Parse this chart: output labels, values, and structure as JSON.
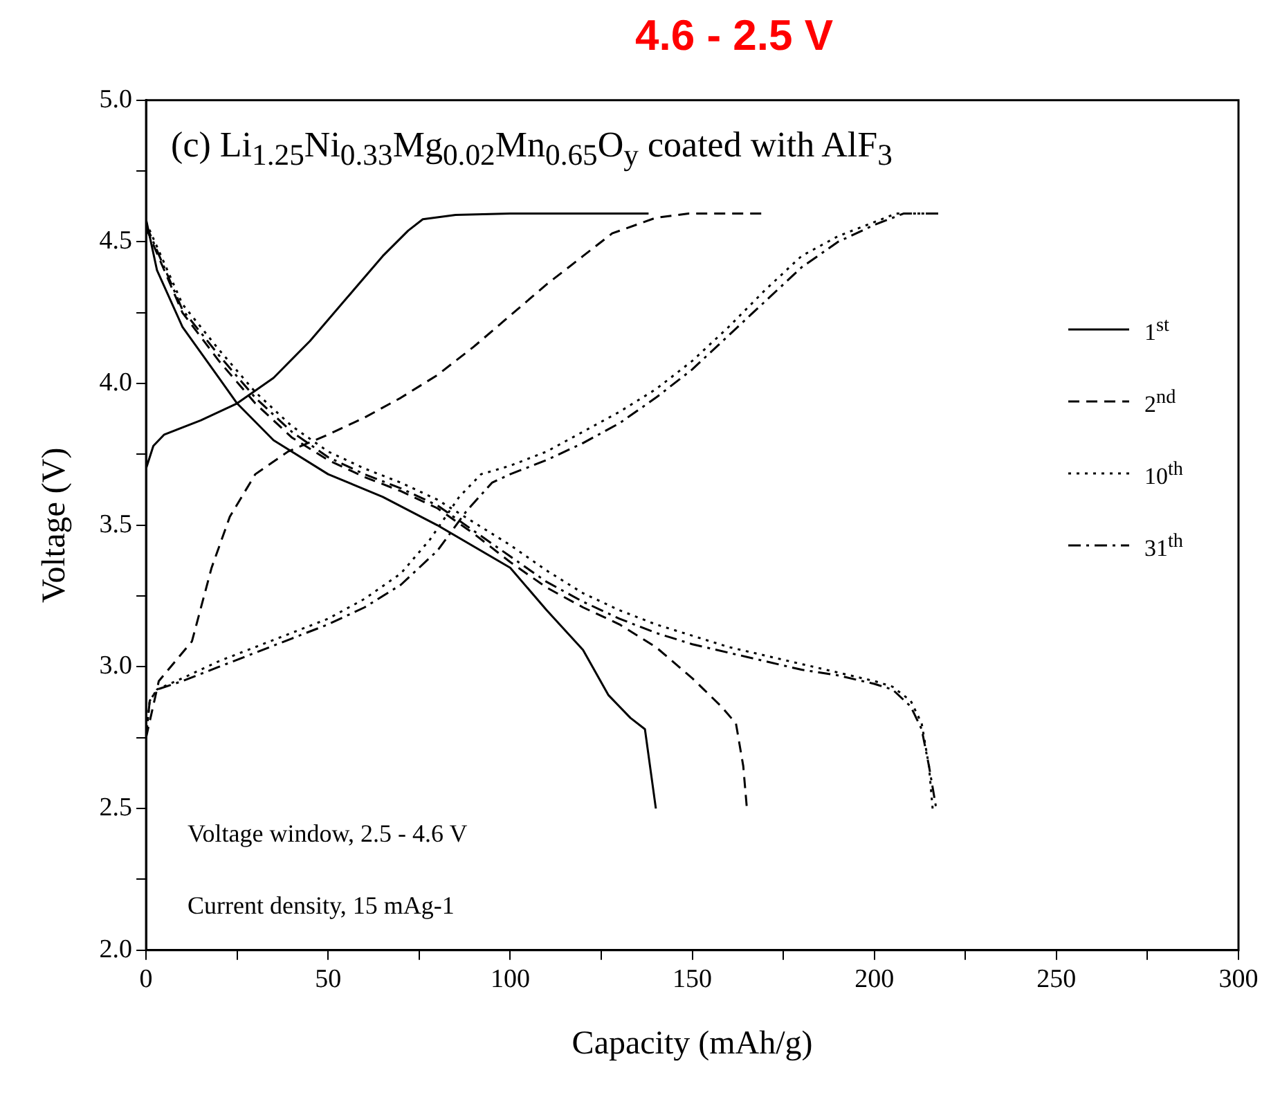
{
  "chart_data": {
    "type": "line",
    "title": "4.6 - 2.5 V",
    "xlabel": "Capacity (mAh/g)",
    "ylabel": "Voltage (V)",
    "annotations": [
      "(c) Li$_{1.25}$Ni$_{0.33}$Mg$_{0.02}$Mn$_{0.65}$O$_{y}$ coated with AlF$_{3}$",
      "Voltage window, 2.5 - 4.6 V",
      "Current density, 15 mAg-1"
    ],
    "xlim": [
      0,
      300
    ],
    "xticks": [
      0,
      {
        "value": 25,
        "label": null
      },
      50,
      {
        "value": 75,
        "label": null
      },
      100,
      {
        "value": 125,
        "label": null
      },
      150,
      {
        "value": 175,
        "label": null
      },
      200,
      {
        "value": 225,
        "label": null
      },
      250,
      {
        "value": 275,
        "label": null
      },
      300
    ],
    "ylim": [
      2,
      5
    ],
    "yticks": [
      {
        "value": 2,
        "label": "2.0"
      },
      {
        "value": 2.25,
        "label": null
      },
      2.5,
      {
        "value": 2.75,
        "label": null
      },
      {
        "value": 3,
        "label": "3.0"
      },
      {
        "value": 3.25,
        "label": null
      },
      3.5,
      {
        "value": 3.75,
        "label": null
      },
      {
        "value": 4,
        "label": "4.0"
      },
      {
        "value": 4.25,
        "label": null
      },
      4.5,
      {
        "value": 4.75,
        "label": null
      },
      {
        "value": 5,
        "label": "5.0"
      }
    ],
    "grid": false,
    "legend": "top right",
    "marker": "none",
    "series": [
      {
        "name": "1$^{st}$",
        "color": "#000000",
        "line_style": "solid",
        "x": [
          0,
          2,
          5,
          15,
          25,
          35,
          45,
          55,
          65,
          72,
          76,
          85,
          100,
          120,
          138
        ],
        "values": [
          3.7,
          3.78,
          3.82,
          3.87,
          3.93,
          4.02,
          4.15,
          4.3,
          4.45,
          4.54,
          4.58,
          4.595,
          4.6,
          4.6,
          4.6
        ]
      },
      {
        "color": "#000000",
        "line_style": "solid",
        "x": [
          0,
          3,
          10,
          20,
          25,
          35,
          50,
          65,
          80,
          100,
          110,
          120,
          127,
          133,
          137,
          140
        ],
        "values": [
          4.58,
          4.4,
          4.2,
          4.02,
          3.93,
          3.8,
          3.68,
          3.6,
          3.5,
          3.35,
          3.2,
          3.06,
          2.9,
          2.82,
          2.78,
          2.5
        ]
      },
      {
        "name": "2$^{nd}$",
        "color": "#000000",
        "line_style": "dashed",
        "x": [
          0,
          3.5,
          12.6,
          18,
          23,
          30,
          39,
          50,
          60,
          70,
          80,
          90,
          100,
          110,
          120,
          128,
          140,
          149,
          170
        ],
        "values": [
          2.75,
          2.95,
          3.09,
          3.35,
          3.53,
          3.68,
          3.76,
          3.82,
          3.88,
          3.95,
          4.03,
          4.13,
          4.24,
          4.35,
          4.45,
          4.53,
          4.585,
          4.6,
          4.6
        ]
      },
      {
        "color": "#000000",
        "line_style": "dashed",
        "x": [
          0,
          10,
          20,
          30,
          40,
          50,
          60,
          70,
          80,
          90,
          100,
          110,
          120,
          130,
          140,
          150,
          158,
          162,
          164,
          165
        ],
        "values": [
          4.55,
          4.25,
          4.08,
          3.93,
          3.81,
          3.73,
          3.67,
          3.62,
          3.56,
          3.47,
          3.37,
          3.28,
          3.21,
          3.15,
          3.07,
          2.96,
          2.86,
          2.8,
          2.65,
          2.5
        ]
      },
      {
        "name": "10$^{th}$",
        "color": "#000000",
        "line_style": "dotted",
        "x": [
          0,
          1,
          3,
          10,
          20,
          30,
          40,
          50,
          60,
          70,
          78,
          86,
          92,
          100,
          110,
          120,
          130,
          140,
          150,
          160,
          170,
          180,
          190,
          200,
          206,
          215
        ],
        "values": [
          2.75,
          2.88,
          2.92,
          2.96,
          3.02,
          3.07,
          3.12,
          3.17,
          3.24,
          3.33,
          3.45,
          3.6,
          3.68,
          3.71,
          3.76,
          3.83,
          3.9,
          3.98,
          4.08,
          4.2,
          4.33,
          4.45,
          4.52,
          4.57,
          4.6,
          4.6
        ]
      },
      {
        "color": "#000000",
        "line_style": "dotted",
        "x": [
          0,
          10,
          20,
          30,
          40,
          50,
          60,
          70,
          80,
          90,
          100,
          110,
          120,
          130,
          140,
          150,
          160,
          170,
          180,
          190,
          200,
          205,
          210,
          213,
          215,
          216
        ],
        "values": [
          4.57,
          4.28,
          4.12,
          3.97,
          3.85,
          3.76,
          3.7,
          3.65,
          3.59,
          3.51,
          3.43,
          3.34,
          3.26,
          3.2,
          3.15,
          3.11,
          3.07,
          3.04,
          3.01,
          2.98,
          2.95,
          2.93,
          2.88,
          2.8,
          2.65,
          2.5
        ]
      },
      {
        "name": "31$^{th}$",
        "color": "#000000",
        "line_style": "dashdot",
        "x": [
          0,
          1,
          3,
          10,
          20,
          30,
          40,
          50,
          60,
          70,
          80,
          88,
          95,
          100,
          110,
          120,
          130,
          140,
          150,
          160,
          170,
          180,
          190,
          200,
          208,
          218
        ],
        "values": [
          2.75,
          2.88,
          2.92,
          2.95,
          3.0,
          3.05,
          3.1,
          3.15,
          3.21,
          3.29,
          3.41,
          3.55,
          3.65,
          3.68,
          3.73,
          3.79,
          3.86,
          3.95,
          4.05,
          4.17,
          4.29,
          4.41,
          4.5,
          4.56,
          4.6,
          4.6
        ]
      },
      {
        "color": "#000000",
        "line_style": "dashdot",
        "x": [
          0,
          10,
          20,
          30,
          40,
          50,
          60,
          70,
          80,
          90,
          100,
          110,
          120,
          130,
          140,
          150,
          160,
          170,
          180,
          190,
          200,
          205,
          210,
          213,
          215,
          217
        ],
        "values": [
          4.56,
          4.26,
          4.1,
          3.95,
          3.83,
          3.74,
          3.68,
          3.63,
          3.57,
          3.48,
          3.39,
          3.3,
          3.23,
          3.17,
          3.12,
          3.08,
          3.05,
          3.02,
          2.99,
          2.97,
          2.94,
          2.92,
          2.86,
          2.78,
          2.65,
          2.5
        ]
      }
    ]
  }
}
